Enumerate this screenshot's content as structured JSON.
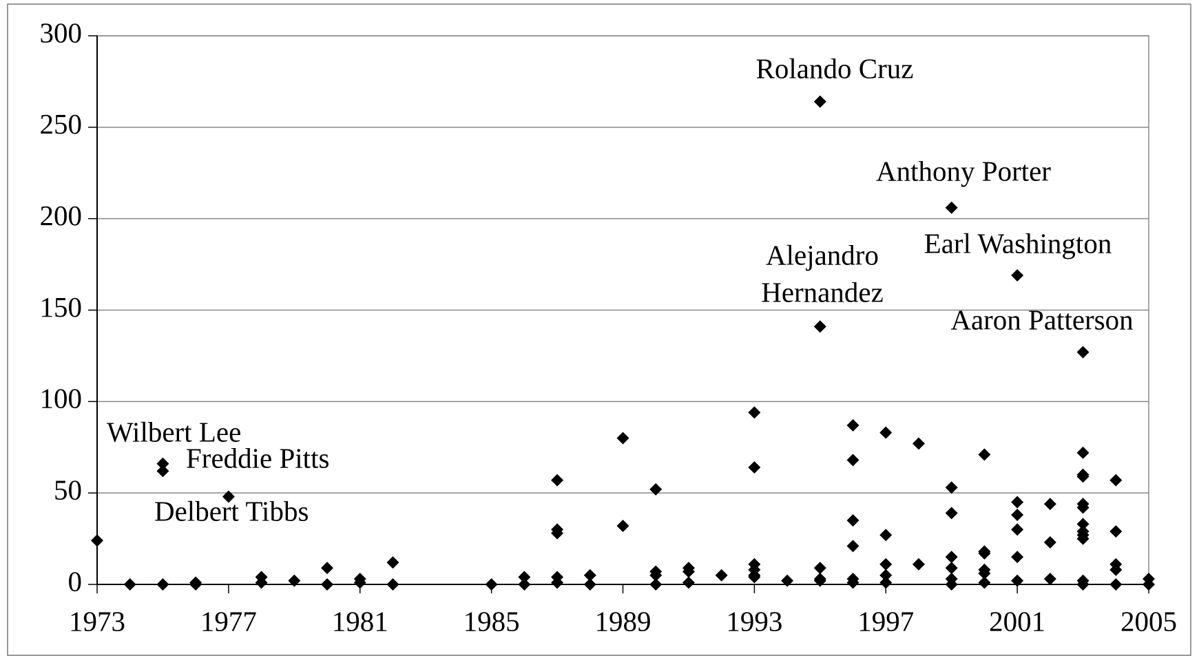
{
  "chart_data": {
    "type": "scatter",
    "xlim": [
      1973,
      2005
    ],
    "xticks": [
      1973,
      1977,
      1981,
      1985,
      1989,
      1993,
      1997,
      2001,
      2005
    ],
    "ylim": [
      0,
      300
    ],
    "yticks": [
      0,
      50,
      100,
      150,
      200,
      250,
      300
    ],
    "grid": true,
    "color": "#000000",
    "x": [
      1973,
      1974,
      1975,
      1975,
      1975,
      1976,
      1976,
      1977,
      1978,
      1978,
      1979,
      1980,
      1980,
      1981,
      1981,
      1982,
      1982,
      1985,
      1986,
      1986,
      1987,
      1987,
      1987,
      1987,
      1987,
      1988,
      1988,
      1989,
      1989,
      1990,
      1990,
      1990,
      1990,
      1991,
      1991,
      1991,
      1992,
      1993,
      1993,
      1993,
      1993,
      1993,
      1993,
      1994,
      1995,
      1995,
      1995,
      1995,
      1995,
      1996,
      1996,
      1996,
      1996,
      1996,
      1996,
      1997,
      1997,
      1997,
      1997,
      1997,
      1998,
      1998,
      1999,
      1999,
      1999,
      1999,
      1999,
      1999,
      1999,
      2000,
      2000,
      2000,
      2000,
      2000,
      2000,
      2001,
      2001,
      2001,
      2001,
      2001,
      2001,
      2002,
      2002,
      2002,
      2003,
      2003,
      2003,
      2003,
      2003,
      2003,
      2003,
      2003,
      2003,
      2003,
      2003,
      2003,
      2004,
      2004,
      2004,
      2004,
      2004,
      2005,
      2005
    ],
    "values": [
      24,
      0,
      66,
      62,
      0,
      1,
      0,
      48,
      4,
      1,
      2,
      9,
      0,
      3,
      1,
      12,
      0,
      0,
      4,
      0,
      57,
      30,
      28,
      4,
      1,
      5,
      0,
      80,
      32,
      52,
      7,
      5,
      0,
      9,
      7,
      1,
      5,
      94,
      64,
      11,
      8,
      5,
      4,
      2,
      264,
      141,
      9,
      3,
      2,
      87,
      68,
      35,
      21,
      3,
      1,
      83,
      27,
      11,
      5,
      1,
      77,
      11,
      206,
      53,
      39,
      15,
      9,
      3,
      0,
      71,
      18,
      17,
      8,
      6,
      1,
      169,
      45,
      38,
      30,
      15,
      2,
      44,
      23,
      3,
      127,
      72,
      60,
      59,
      44,
      42,
      33,
      29,
      27,
      25,
      2,
      0,
      57,
      29,
      11,
      8,
      0,
      3,
      0
    ],
    "annotations": [
      "Rolando Cruz",
      "Anthony Porter",
      "Earl Washington",
      "Alejandro",
      "Hernandez",
      "Aaron Patterson",
      "Wilbert Lee",
      "Freddie Pitts",
      "Delbert Tibbs"
    ]
  }
}
